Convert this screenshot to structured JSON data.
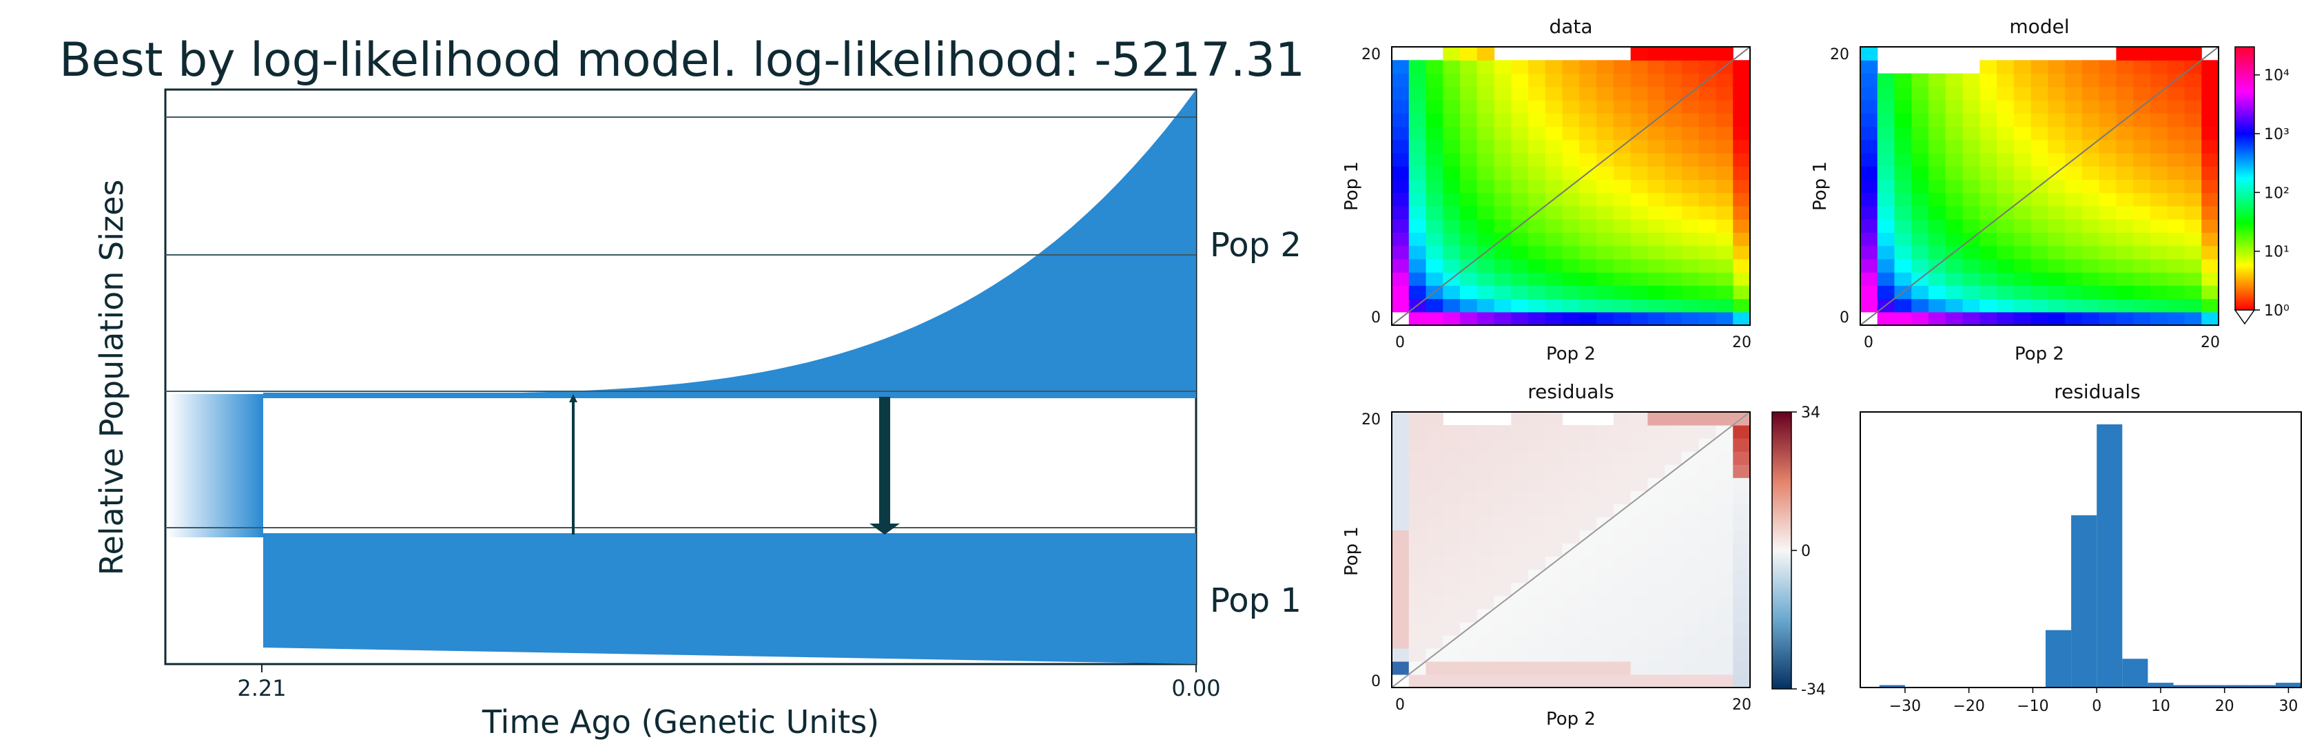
{
  "demography": {
    "title": "Best by log-likelihood model. log-likelihood: -5217.31",
    "xlabel": "Time Ago (Genetic Units)",
    "ylabel": "Relative Population Sizes",
    "x_ticks": [
      "2.21",
      "0.00"
    ],
    "pop_labels": [
      "Pop 2",
      "Pop 1"
    ],
    "fill_color": "#2a8ad2",
    "migration_color": "#0b3a44"
  },
  "chart_data": [
    {
      "type": "heatmap",
      "title": "data",
      "xlabel": "Pop 2",
      "ylabel": "Pop 1",
      "x_ticks": [
        "0",
        "20"
      ],
      "y_ticks": [
        "0",
        "20"
      ],
      "colormap": "hsv (red to magenta)",
      "scale": "log",
      "diagonal_line": true
    },
    {
      "type": "heatmap",
      "title": "model",
      "xlabel": "Pop 2",
      "ylabel": "Pop 1",
      "x_ticks": [
        "0",
        "20"
      ],
      "y_ticks": [
        "0",
        "20"
      ],
      "colormap": "hsv (red to magenta)",
      "scale": "log",
      "colorbar": {
        "ticks": [
          "10⁴",
          "10³",
          "10²",
          "10¹",
          "10⁰"
        ],
        "range": [
          1,
          30000
        ]
      },
      "diagonal_line": true
    },
    {
      "type": "heatmap",
      "title": "residuals",
      "xlabel": "Pop 2",
      "ylabel": "Pop 1",
      "x_ticks": [
        "0",
        "20"
      ],
      "y_ticks": [
        "0",
        "20"
      ],
      "colormap": "RdBu (diverging)",
      "colorbar": {
        "ticks": [
          "34",
          "0",
          "-34"
        ],
        "range": [
          -34,
          34
        ]
      },
      "diagonal_line": true
    },
    {
      "type": "bar",
      "title": "residuals",
      "x_ticks": [
        "−30",
        "−20",
        "−10",
        "0",
        "10",
        "20",
        "30"
      ],
      "xlim": [
        -37,
        32
      ],
      "bins": [
        {
          "x0": -34,
          "x1": -30,
          "count": 1
        },
        {
          "x0": -8,
          "x1": -4,
          "count": 24
        },
        {
          "x0": -4,
          "x1": 0,
          "count": 72
        },
        {
          "x0": 0,
          "x1": 4,
          "count": 110
        },
        {
          "x0": 4,
          "x1": 8,
          "count": 12
        },
        {
          "x0": 8,
          "x1": 12,
          "count": 2
        },
        {
          "x0": 12,
          "x1": 16,
          "count": 1
        },
        {
          "x0": 16,
          "x1": 20,
          "count": 1
        },
        {
          "x0": 20,
          "x1": 24,
          "count": 1
        },
        {
          "x0": 24,
          "x1": 28,
          "count": 1
        },
        {
          "x0": 28,
          "x1": 32,
          "count": 2
        }
      ],
      "color": "#2a7bbf"
    }
  ]
}
